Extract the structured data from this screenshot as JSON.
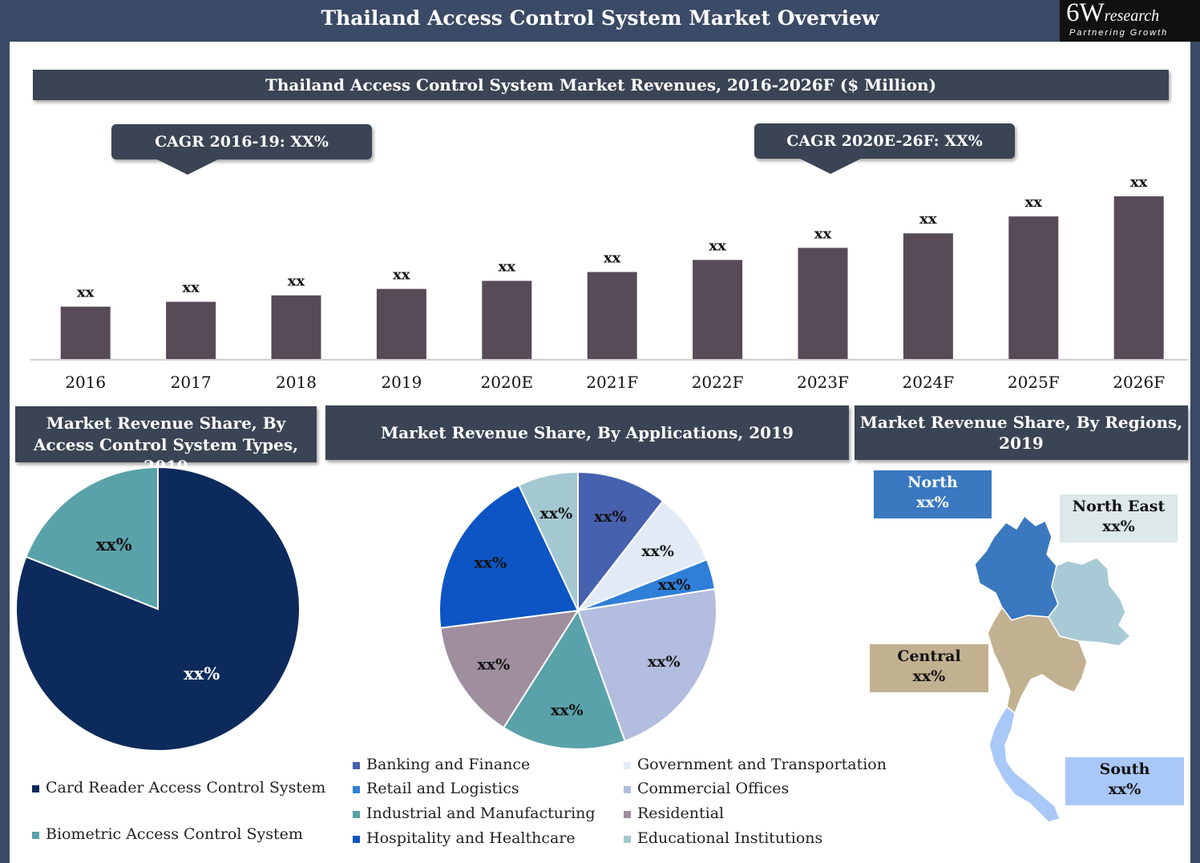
{
  "header": {
    "title": "Thailand Access Control System Market Overview",
    "logo_main": "6W",
    "logo_suffix": "research",
    "logo_tagline": "Partnering Growth"
  },
  "revenue_chart": {
    "banner": "Thailand Access Control System Market Revenues, 2016-2026F ($ Million)",
    "callout_left": "CAGR 2016-19: XX%",
    "callout_right": "CAGR 2020E-26F: XX%"
  },
  "types_chart": {
    "banner": "Market Revenue Share, By Access Control System Types, 2019"
  },
  "applications_chart": {
    "banner": "Market Revenue Share, By Applications, 2019"
  },
  "regions_chart": {
    "banner": "Market Revenue Share, By Regions, 2019",
    "regions": [
      {
        "name": "North",
        "value": "xx%",
        "color": "#3a78c0"
      },
      {
        "name": "North East",
        "value": "xx%",
        "color": "#dce8ea"
      },
      {
        "name": "Central",
        "value": "xx%",
        "color": "#c2b190"
      },
      {
        "name": "South",
        "value": "xx%",
        "color": "#a9c8f7"
      }
    ]
  },
  "colors": {
    "frame": "#3b4a66",
    "banner": "#3b4454",
    "bar": "#564b57"
  },
  "chart_data": [
    {
      "type": "bar",
      "title": "Thailand Access Control System Market Revenues, 2016-2026F ($ Million)",
      "categories": [
        "2016",
        "2017",
        "2018",
        "2019",
        "2020E",
        "2021F",
        "2022F",
        "2023F",
        "2024F",
        "2025F",
        "2026F"
      ],
      "values": [
        65,
        71,
        79,
        87,
        97,
        108,
        123,
        138,
        156,
        177,
        202
      ],
      "labels": [
        "xx",
        "xx",
        "xx",
        "xx",
        "xx",
        "xx",
        "xx",
        "xx",
        "xx",
        "xx",
        "xx"
      ],
      "ylim": [
        0,
        220
      ],
      "xlabel": "",
      "ylabel": "",
      "bar_color": "#564b57"
    },
    {
      "type": "pie",
      "title": "Market Revenue Share, By Access Control System Types, 2019",
      "labels": [
        "Card Reader Access Control System",
        "Biometric Access Control System"
      ],
      "values": [
        81,
        19
      ],
      "value_labels": [
        "xx%",
        "xx%"
      ],
      "colors": [
        "#0c2a5c",
        "#5aa2a9"
      ]
    },
    {
      "type": "pie",
      "title": "Market Revenue Share, By Applications, 2019",
      "labels": [
        "Banking and Finance",
        "Government and Transportation",
        "Retail and Logistics",
        "Commercial Offices",
        "Industrial and Manufacturing",
        "Residential",
        "Hospitality and Healthcare",
        "Educational Institutions"
      ],
      "values": [
        10.5,
        8.5,
        3.5,
        22,
        14.5,
        14,
        20,
        7
      ],
      "value_labels": [
        "xx%",
        "xx%",
        "xx%",
        "xx%",
        "xx%",
        "xx%",
        "xx%",
        "xx%"
      ],
      "colors": [
        "#4661ae",
        "#e2ebf5",
        "#2f7fd8",
        "#b3bddf",
        "#5aa2a9",
        "#9e8e9e",
        "#0d55c4",
        "#a3c8d2"
      ]
    }
  ]
}
